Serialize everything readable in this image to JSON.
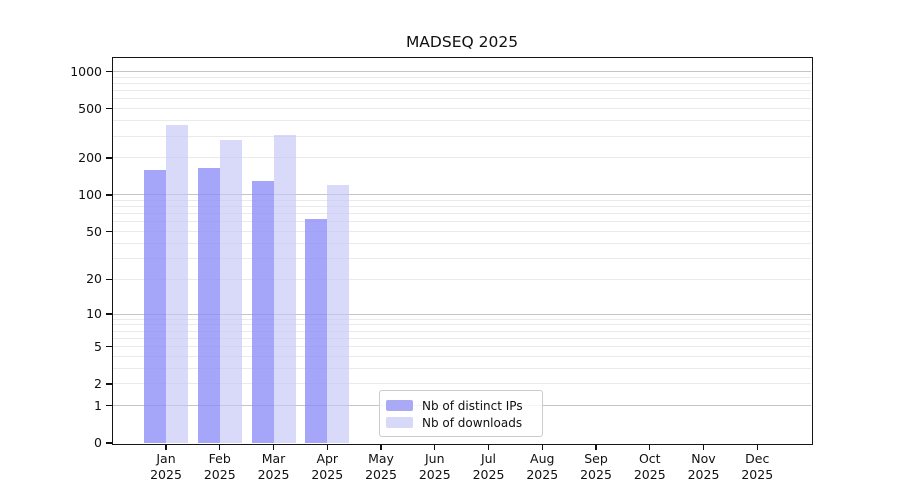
{
  "page": {
    "background": "#ffffff"
  },
  "chart_data": {
    "type": "bar",
    "title": "MADSEQ 2025",
    "year_label": "2025",
    "categories": [
      "Jan",
      "Feb",
      "Mar",
      "Apr",
      "May",
      "Jun",
      "Jul",
      "Aug",
      "Sep",
      "Oct",
      "Nov",
      "Dec"
    ],
    "series": [
      {
        "name": "Nb of distinct IPs",
        "legend_color": "#a9a9f6",
        "fill_rgba": "rgba(140,140,248,0.78)",
        "values": [
          158,
          165,
          130,
          63,
          null,
          null,
          null,
          null,
          null,
          null,
          null,
          null
        ]
      },
      {
        "name": "Nb of downloads",
        "legend_color": "#d8d8f8",
        "fill_rgba": "rgba(196,196,246,0.65)",
        "values": [
          370,
          280,
          305,
          120,
          null,
          null,
          null,
          null,
          null,
          null,
          null,
          null
        ]
      }
    ],
    "yscale": "log10(1+x)",
    "yticks": [
      1000,
      500,
      200,
      100,
      50,
      20,
      10,
      5,
      2,
      1,
      0
    ],
    "ylim": [
      0,
      1288
    ],
    "grid": true,
    "legend_position": "lower-center",
    "colors": {
      "major_gridline": "#c5c5c5",
      "minor_gridline": "#eaeaea",
      "axis": "#151515",
      "text": "#111111"
    }
  }
}
